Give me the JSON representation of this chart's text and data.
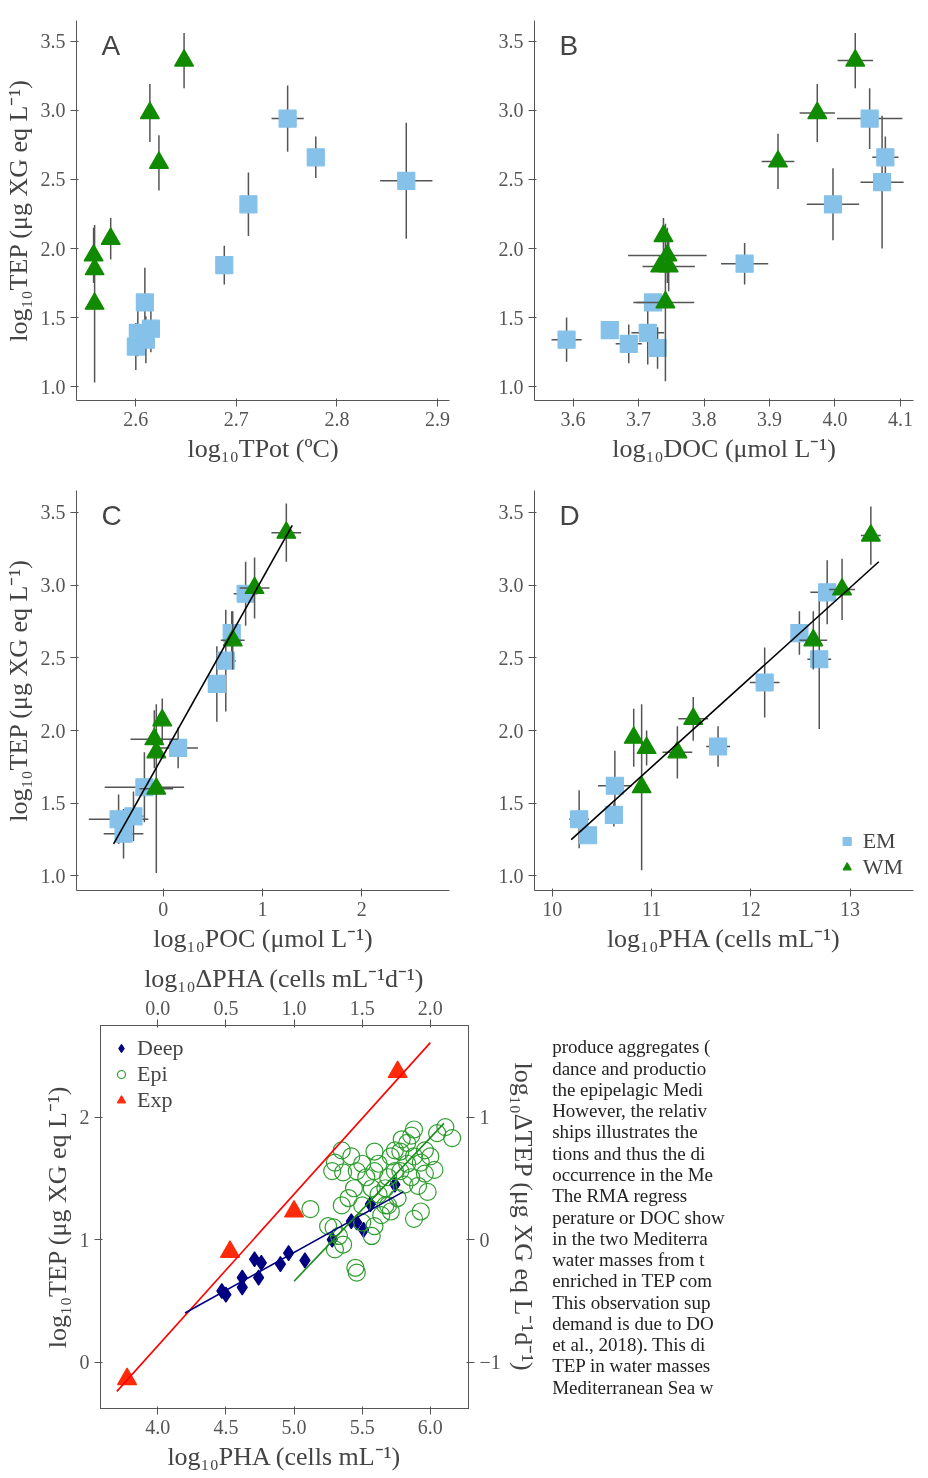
{
  "chart_data": [
    {
      "type": "scatter",
      "xlabel": "log₁₀TPot (ºC)",
      "ylabel": "log₁₀TEP (μg XG eq L⁻¹)",
      "annotations": [
        "A"
      ],
      "xlim": [
        2.541,
        2.912
      ],
      "ylim": [
        0.9,
        3.65
      ],
      "xticks": [
        2.6,
        2.7,
        2.8,
        2.9
      ],
      "yticks": [
        {
          "value": 1,
          "label": "1.0"
        },
        1.5,
        {
          "value": 2,
          "label": "2.0"
        },
        2.5,
        {
          "value": 3,
          "label": "3.0"
        },
        3.5
      ],
      "grid": false,
      "legend": false,
      "series": [
        {
          "color": "#85c1e9",
          "marker": "square",
          "x": [
            2.751,
            2.779,
            2.869,
            2.712,
            2.688,
            2.609,
            2.6,
            2.602,
            2.61,
            2.615
          ],
          "values": [
            2.94,
            2.66,
            2.49,
            2.32,
            1.88,
            1.61,
            1.29,
            1.39,
            1.34,
            1.42
          ],
          "errors": [
            0.24,
            0.15,
            0.42,
            0.23,
            0.14,
            0.25,
            0.17,
            0.17,
            0.17,
            0.17
          ],
          "xerrors": [
            0.016,
            null,
            0.026,
            null,
            null,
            null,
            null,
            null,
            null,
            null
          ]
        },
        {
          "color": "#108a00",
          "marker": "triangle",
          "x": [
            2.648,
            2.614,
            2.623,
            2.575,
            2.558,
            2.559,
            2.559
          ],
          "values": [
            3.36,
            2.98,
            2.62,
            2.07,
            1.95,
            1.85,
            1.6
          ],
          "errors": [
            0.2,
            0.21,
            0.2,
            0.15,
            0.2,
            null,
            0.57
          ]
        }
      ]
    },
    {
      "type": "scatter",
      "xlabel": "log₁₀DOC (μmol L⁻¹)",
      "annotations": [
        "B"
      ],
      "xlim": [
        3.541,
        4.12
      ],
      "ylim": [
        0.9,
        3.65
      ],
      "xticks": [
        3.6,
        3.7,
        3.8,
        3.9,
        {
          "value": 4,
          "label": "4.0"
        },
        4.1
      ],
      "yticks": [
        {
          "value": 1,
          "label": "1.0"
        },
        1.5,
        {
          "value": 2,
          "label": "2.0"
        },
        2.5,
        {
          "value": 3,
          "label": "3.0"
        },
        3.5
      ],
      "grid": false,
      "legend": false,
      "series": [
        {
          "color": "#85c1e9",
          "marker": "square",
          "x": [
            3.59,
            3.656,
            3.685,
            3.714,
            3.729,
            3.722,
            3.862,
            3.997,
            4.053,
            4.077,
            4.072
          ],
          "values": [
            1.34,
            1.41,
            1.31,
            1.39,
            1.28,
            1.61,
            1.89,
            2.32,
            2.94,
            2.66,
            2.48
          ],
          "errors": [
            0.16,
            null,
            0.14,
            0.23,
            0.15,
            null,
            0.15,
            0.26,
            0.22,
            0.15,
            0.48
          ],
          "xerrors": [
            0.023,
            null,
            0.02,
            0.025,
            null,
            0.03,
            0.036,
            0.04,
            0.05,
            0.02,
            0.033
          ]
        },
        {
          "color": "#108a00",
          "marker": "triangle",
          "x": [
            4.031,
            3.973,
            3.913,
            3.738,
            3.744,
            3.746,
            3.733,
            3.741
          ],
          "values": [
            3.36,
            2.98,
            2.63,
            2.09,
            1.95,
            1.87,
            1.87,
            1.61
          ],
          "errors": [
            0.2,
            0.21,
            0.2,
            0.13,
            0.2,
            0.18,
            null,
            0.57
          ],
          "xerrors": [
            0.027,
            0.027,
            0.025,
            null,
            0.06,
            0.04,
            null,
            0.044
          ]
        }
      ]
    },
    {
      "type": "scatter",
      "xlabel": "log₁₀POC (μmol L⁻¹)",
      "ylabel": "log₁₀TEP (μg XG eq L⁻¹)",
      "annotations": [
        "C"
      ],
      "xlim": [
        -0.874,
        2.884
      ],
      "ylim": [
        0.9,
        3.65
      ],
      "xticks": [
        0,
        1,
        2
      ],
      "yticks": [
        {
          "value": 1,
          "label": "1.0"
        },
        1.5,
        {
          "value": 2,
          "label": "2.0"
        },
        2.5,
        {
          "value": 3,
          "label": "3.0"
        },
        3.5
      ],
      "grid": false,
      "legend": false,
      "series": [
        {
          "color": "#85c1e9",
          "marker": "square",
          "x": [
            0.83,
            0.69,
            0.63,
            0.54,
            0.15,
            -0.19,
            -0.3,
            -0.4,
            -0.45
          ],
          "values": [
            2.94,
            2.67,
            2.48,
            2.32,
            1.88,
            1.61,
            1.41,
            1.29,
            1.39
          ],
          "errors": [
            0.22,
            0.15,
            0.35,
            0.26,
            0.14,
            0.24,
            0.17,
            0.17,
            0.17
          ],
          "xerrors": [
            0.12,
            null,
            0.1,
            0.09,
            0.2,
            0.4,
            0.1,
            0.2,
            0.3
          ]
        },
        {
          "color": "#108a00",
          "marker": "triangle",
          "x": [
            1.24,
            0.92,
            0.7,
            -0.01,
            -0.09,
            -0.07,
            -0.07
          ],
          "values": [
            3.36,
            2.98,
            2.62,
            2.07,
            1.94,
            1.85,
            1.6
          ],
          "errors": [
            0.2,
            0.21,
            0.2,
            0.15,
            0.2,
            null,
            0.58
          ],
          "xerrors": [
            0.15,
            0.15,
            0.12,
            null,
            0.24,
            null,
            0.17
          ]
        },
        {
          "type": "line",
          "color": "#000000",
          "x": [
            -0.5,
            1.3
          ],
          "values": [
            1.22,
            3.41
          ]
        }
      ]
    },
    {
      "type": "scatter",
      "xlabel": "log₁₀PHA (cells mL⁻¹)",
      "annotations": [
        "D"
      ],
      "xlim": [
        9.82,
        13.64
      ],
      "ylim": [
        0.9,
        3.65
      ],
      "xticks": [
        10,
        11,
        12,
        13
      ],
      "yticks": [
        {
          "value": 1,
          "label": "1.0"
        },
        1.5,
        {
          "value": 2,
          "label": "2.0"
        },
        2.5,
        {
          "value": 3,
          "label": "3.0"
        },
        3.5
      ],
      "grid": false,
      "legend": "bottom right",
      "series": [
        {
          "name": "EM",
          "color": "#85c1e9",
          "marker": "square",
          "x": [
            12.77,
            12.49,
            12.69,
            12.14,
            11.67,
            10.63,
            10.62,
            10.27,
            10.36
          ],
          "values": [
            2.95,
            2.67,
            2.49,
            2.33,
            1.89,
            1.62,
            1.42,
            1.39,
            1.28
          ],
          "errors": [
            0.22,
            0.15,
            0.48,
            0.24,
            0.14,
            0.24,
            0.08,
            0.2,
            null
          ],
          "xerrors": [
            0.17,
            null,
            0.12,
            0.15,
            0.12,
            0.17,
            null,
            0.1,
            null
          ]
        },
        {
          "name": "WM",
          "color": "#108a00",
          "marker": "triangle",
          "x": [
            13.21,
            12.92,
            12.63,
            11.42,
            10.82,
            10.95,
            11.26,
            10.9
          ],
          "values": [
            3.34,
            2.97,
            2.62,
            2.08,
            1.95,
            1.88,
            1.85,
            1.61
          ],
          "errors": [
            0.2,
            0.21,
            0.2,
            0.15,
            0.2,
            0.12,
            0.18,
            0.57
          ],
          "xerrors": [
            0.1,
            0.13,
            0.14,
            0.15,
            null,
            null,
            0.15,
            null
          ]
        },
        {
          "type": "line",
          "color": "#000000",
          "x": [
            10.19,
            13.29
          ],
          "values": [
            1.25,
            3.16
          ]
        }
      ]
    },
    {
      "type": "scatter",
      "xlabel": "log₁₀PHA (cells mL⁻¹)",
      "ylabel": "log₁₀TEP (μg XG eq L⁻¹)",
      "x2label": "log₁₀ΔPHA (cells mL⁻¹d⁻¹)",
      "y2label": "log₁₀ΔTEP (μg XG eq L⁻¹d⁻¹)",
      "xlim": [
        3.58,
        6.28
      ],
      "ylim": [
        -0.38,
        2.75
      ],
      "x2lim": [
        -0.42,
        2.28
      ],
      "y2lim": [
        -1.38,
        1.75
      ],
      "xticks": [
        {
          "value": 4,
          "label": "4.0"
        },
        4.5,
        {
          "value": 5,
          "label": "5.0"
        },
        5.5,
        {
          "value": 6,
          "label": "6.0"
        }
      ],
      "yticks": [
        0,
        1,
        2
      ],
      "x2ticks": [
        {
          "value": 0,
          "label": "0.0"
        },
        0.5,
        {
          "value": 1,
          "label": "1.0"
        },
        1.5,
        {
          "value": 2,
          "label": "2.0"
        }
      ],
      "y2ticks": [
        -1,
        0,
        1
      ],
      "grid": false,
      "legend": "top left",
      "series": [
        {
          "name": "Deep",
          "color": "#000080",
          "marker": "diamond",
          "x": [
            4.47,
            4.5,
            4.62,
            4.62,
            4.74,
            4.71,
            4.76,
            4.9,
            4.96,
            5.08,
            5.28,
            5.42,
            5.46,
            5.51,
            5.56,
            5.74
          ],
          "values": [
            0.58,
            0.55,
            0.61,
            0.69,
            0.69,
            0.84,
            0.81,
            0.8,
            0.89,
            0.83,
            1.0,
            1.15,
            1.14,
            1.08,
            1.29,
            1.45
          ]
        },
        {
          "name": "Epi",
          "color": "#2e9e2e",
          "marker": "circle",
          "x": [
            5.12,
            5.29,
            5.3,
            5.36,
            5.45,
            5.46,
            5.33,
            5.28,
            5.35,
            5.42,
            5.3,
            5.36,
            5.46,
            5.5,
            5.53,
            5.59,
            5.57,
            5.62,
            5.67,
            5.69,
            5.71,
            5.78,
            5.83,
            5.86,
            5.88,
            5.93,
            5.96,
            6.0,
            6.05,
            6.11,
            6.16,
            6.03,
            5.91,
            5.88,
            5.93,
            5.81,
            5.74,
            5.76,
            5.71,
            5.64,
            5.59,
            5.57,
            5.5,
            5.5,
            5.44,
            5.4,
            5.59,
            5.62,
            5.83,
            5.86,
            5.96,
            5.79,
            5.67,
            5.78,
            5.98,
            5.35,
            5.25,
            5.69,
            5.88,
            5.74
          ],
          "values": [
            1.25,
            1.1,
            0.92,
            0.96,
            0.77,
            0.73,
            1.03,
            1.56,
            1.73,
            1.68,
            1.63,
            1.55,
            1.56,
            1.62,
            1.51,
            1.72,
            1.42,
            1.37,
            1.28,
            1.51,
            1.68,
            1.72,
            1.79,
            1.85,
            1.9,
            1.63,
            1.54,
            1.68,
            1.87,
            1.92,
            1.83,
            1.57,
            1.44,
            1.17,
            1.23,
            1.45,
            1.56,
            1.34,
            1.23,
            1.2,
            1.11,
            1.03,
            1.14,
            1.28,
            1.42,
            1.34,
            1.56,
            1.62,
            1.62,
            1.51,
            1.73,
            1.82,
            1.42,
            1.56,
            1.39,
            1.28,
            1.11,
            1.28,
            1.68,
            1.73
          ]
        },
        {
          "name": "Exp",
          "color": "#ff2a0a",
          "marker": "triangle",
          "x": [
            3.775,
            4.53,
            5.0,
            5.76
          ],
          "values": [
            -0.14,
            0.9,
            1.23,
            2.37
          ]
        },
        {
          "type": "line",
          "color": "#ff0000",
          "x": [
            3.7,
            6.0
          ],
          "values": [
            -0.24,
            2.61
          ]
        },
        {
          "type": "line",
          "color": "#000080",
          "x": [
            4.2,
            5.8
          ],
          "values": [
            0.4,
            1.39
          ]
        },
        {
          "type": "line",
          "color": "#1a8c1a",
          "x": [
            5.0,
            6.1
          ],
          "values": [
            0.66,
            1.95
          ]
        }
      ]
    },
    {
      "type": "other",
      "annotations": [
        "produce aggregates (",
        "dance and productio",
        "the epipelagic Medi",
        "However, the relativ",
        "ships illustrates the",
        "tions and thus the di",
        "occurrence in the Me",
        "The RMA regress",
        "perature or DOC show",
        "in the two Mediterra",
        "water masses from t",
        "enriched in TEP com",
        "This observation sup",
        "demand is due to DO",
        "et al., 2018). This di",
        "TEP in water masses",
        "Mediterranean Sea w"
      ]
    }
  ]
}
